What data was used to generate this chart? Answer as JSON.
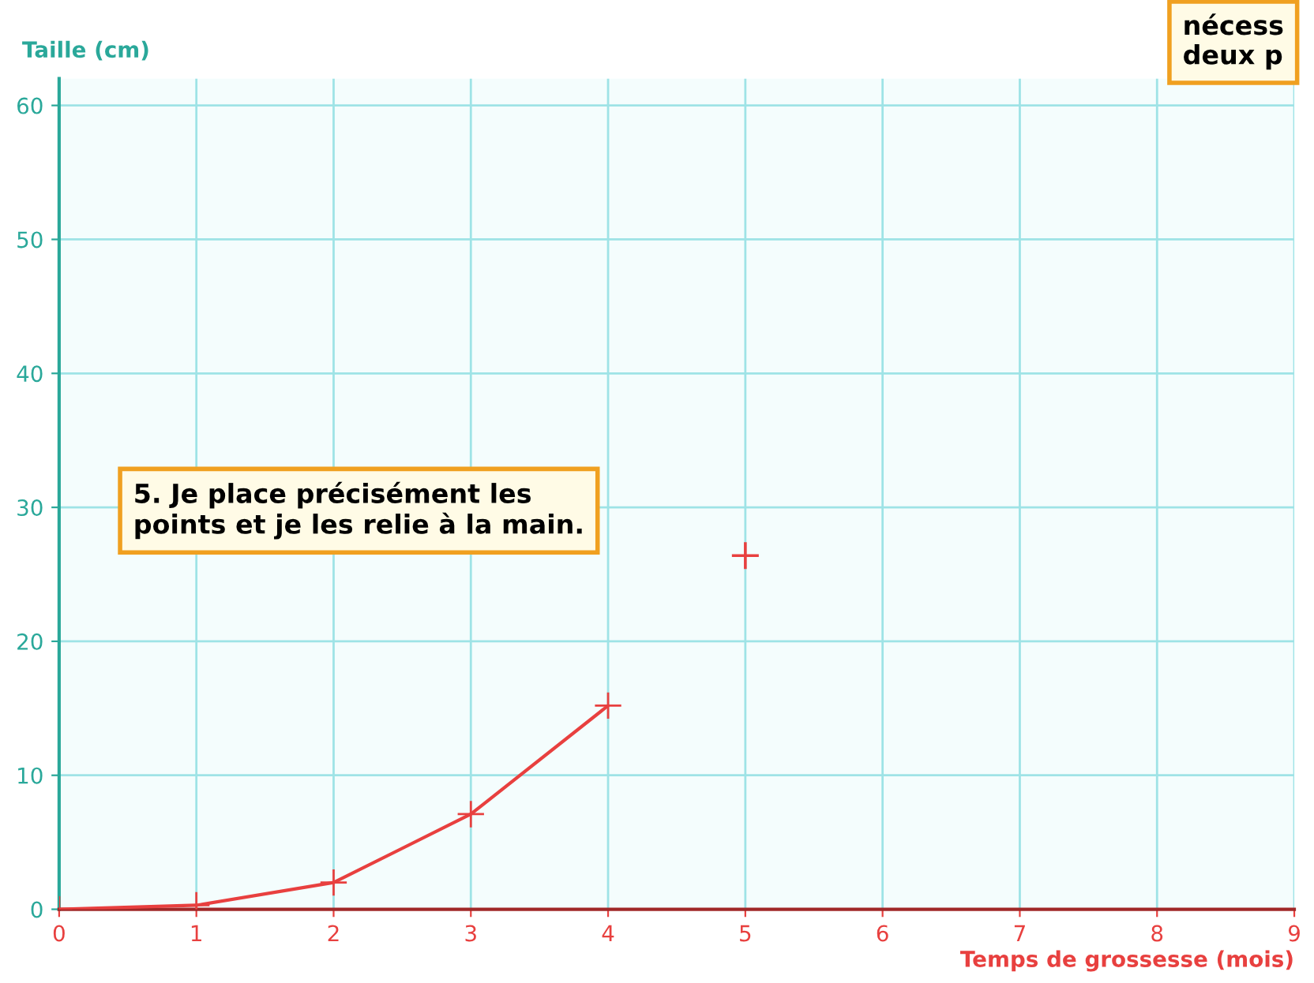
{
  "chart_data": {
    "type": "line",
    "xlabel": "Temps de grossesse (mois)",
    "ylabel": "Taille (cm)",
    "series": [
      {
        "color": "#e8403f",
        "x": [
          0,
          1,
          2,
          3,
          4
        ],
        "values": [
          0,
          0.3,
          2.0,
          7.1,
          15.2
        ],
        "marker": "cross"
      },
      {
        "type": "scatter",
        "color": "#e8403f",
        "x": [
          5
        ],
        "values": [
          26.4
        ],
        "marker": "cross"
      }
    ],
    "xlim": [
      0,
      9
    ],
    "xticks": [
      0,
      1,
      2,
      3,
      4,
      5,
      6,
      7,
      8,
      9
    ],
    "ylim": [
      0,
      62
    ],
    "yticks": [
      0,
      10,
      20,
      30,
      40,
      50,
      60
    ],
    "grid": true,
    "annotations": [
      "5. Je place précisément les\npoints et je les relie à la main.",
      "nécess\ndeux p"
    ]
  }
}
